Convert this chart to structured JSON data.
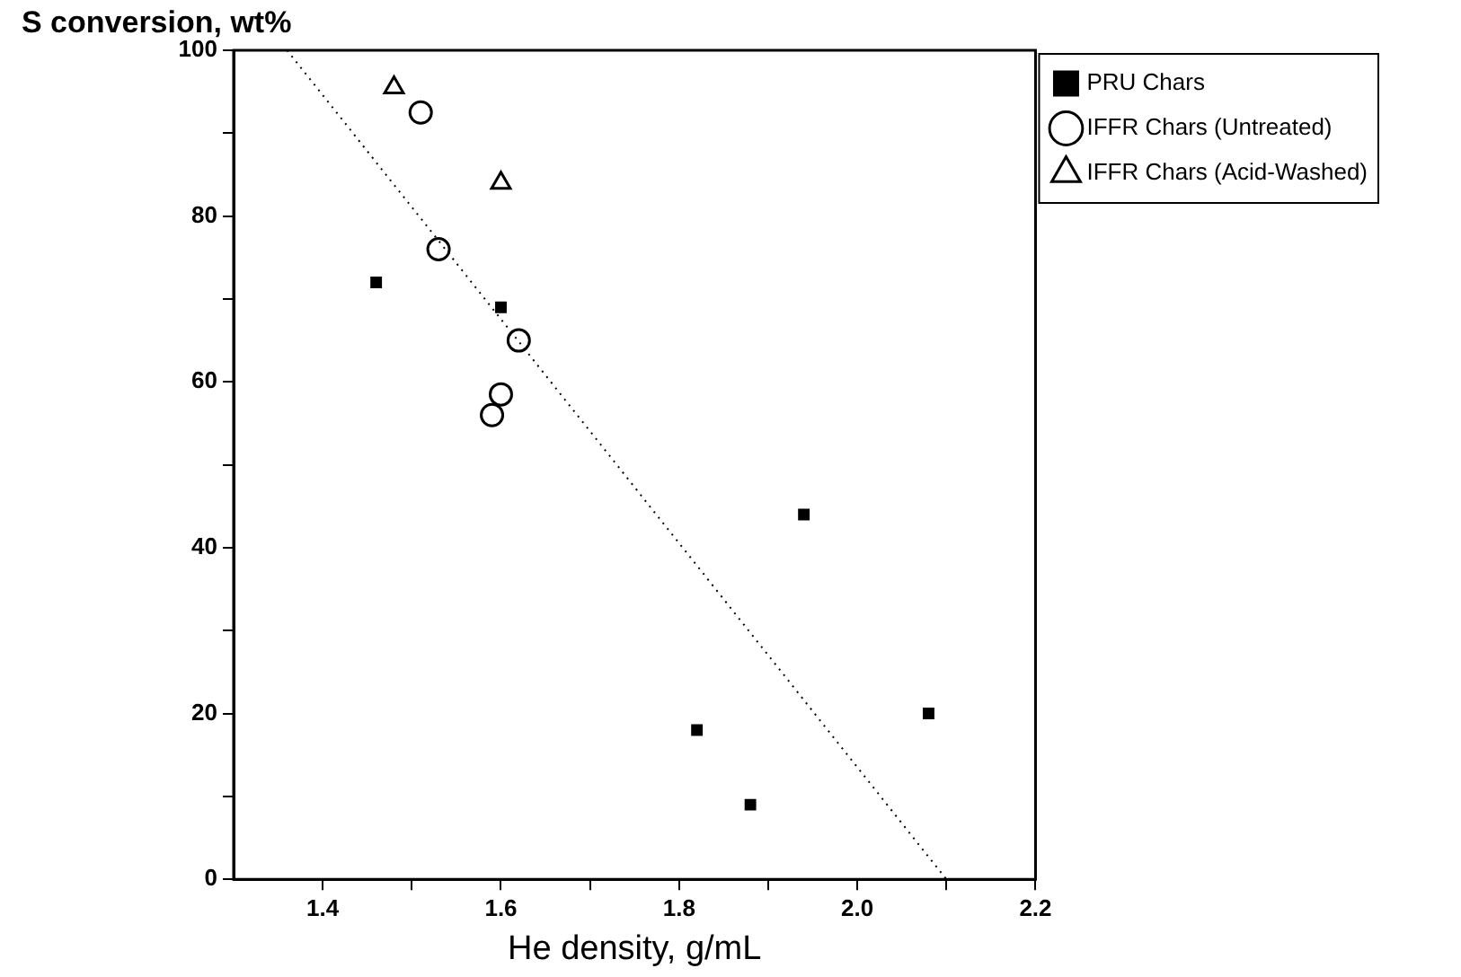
{
  "chart_data": {
    "type": "scatter",
    "xlabel": "He density, g/mL",
    "ylabel": "S conversion, wt%",
    "xlim": [
      1.3,
      2.2
    ],
    "xticks": [
      1.4,
      {
        "value": 1.5,
        "label": null
      },
      1.6,
      {
        "value": 1.7,
        "label": null
      },
      1.8,
      {
        "value": 1.9,
        "label": null
      },
      {
        "value": 2,
        "label": "2.0"
      },
      {
        "value": 2.1,
        "label": null
      },
      2.2
    ],
    "ylim": [
      0,
      100
    ],
    "yticks": [
      0,
      {
        "value": 10,
        "label": null
      },
      20,
      {
        "value": 30,
        "label": null
      },
      40,
      {
        "value": 50,
        "label": null
      },
      60,
      {
        "value": 70,
        "label": null
      },
      80,
      {
        "value": 90,
        "label": null
      },
      100
    ],
    "grid": false,
    "legend": "top right",
    "series": [
      {
        "name": "PRU Chars",
        "color": "#000000",
        "marker": "square",
        "x": [
          1.46,
          1.6,
          1.94,
          1.82,
          1.88,
          2.08
        ],
        "values": [
          72,
          69,
          44,
          18,
          9,
          20
        ]
      },
      {
        "name": "IFFR Chars (Untreated)",
        "color": "#000000",
        "marker": "circle",
        "x": [
          1.51,
          1.53,
          1.62,
          1.6,
          1.59
        ],
        "values": [
          92.5,
          76,
          65,
          58.5,
          56
        ]
      },
      {
        "name": "IFFR Chars (Acid-Washed)",
        "color": "#000000",
        "marker": "triangle",
        "x": [
          1.48,
          1.6
        ],
        "values": [
          95.5,
          84
        ]
      },
      {
        "type": "line",
        "color": "#000000",
        "marker": "none",
        "line_style": "dotted",
        "x": [
          1.36,
          2.1
        ],
        "values": [
          100,
          0
        ]
      }
    ]
  }
}
